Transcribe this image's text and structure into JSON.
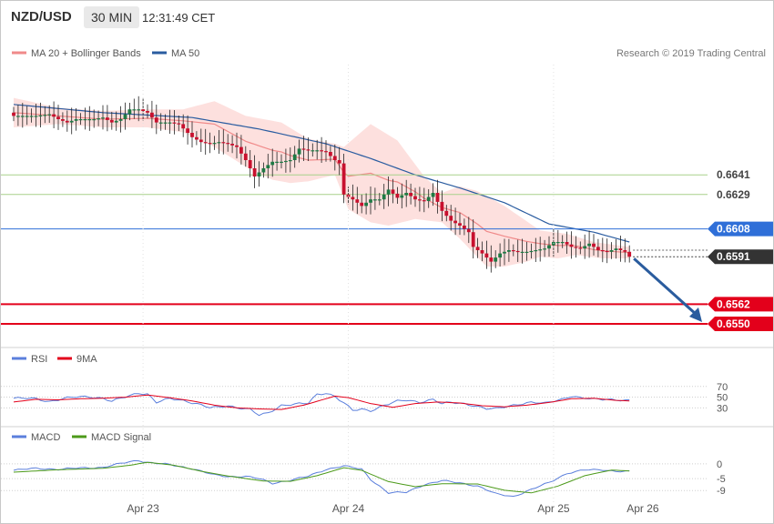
{
  "header": {
    "pair": "NZD/USD",
    "timeframe": "30 MIN",
    "clock": "12:31:49 CET"
  },
  "legend": {
    "bollinger": "MA 20 + Bollinger Bands",
    "ma50": "MA 50",
    "credit": "Research © 2019 Trading Central",
    "rsi": "RSI",
    "rsi_ma": "9MA",
    "macd": "MACD",
    "macd_signal": "MACD Signal"
  },
  "colors": {
    "bollinger": "#f08a8a",
    "bollinger_band": "#fde0de",
    "ma50": "#2a5ca0",
    "candle_up": "#1f7a45",
    "candle_down": "#c8102e",
    "resistance": "#a8d18a",
    "pivot": "#2f6fd8",
    "support": "#e3001b",
    "last_price": "#333333",
    "arrow": "#2a5c9e",
    "rsi": "#5b7fdc",
    "rsi_ma": "#e3001b",
    "macd": "#5b7fdc",
    "macd_signal": "#4c9a1a"
  },
  "chart_data": {
    "type": "candlestick",
    "x_ticks": [
      "Apr 23",
      "Apr 24",
      "Apr 25",
      "Apr 26"
    ],
    "price_axis_range": [
      0.654,
      0.6705
    ],
    "levels": [
      {
        "value": 0.6641,
        "label": "0.6641",
        "kind": "resistance"
      },
      {
        "value": 0.6629,
        "label": "0.6629",
        "kind": "resistance"
      },
      {
        "value": 0.6608,
        "label": "0.6608",
        "kind": "pivot"
      },
      {
        "value": 0.6591,
        "label": "0.6591",
        "kind": "last"
      },
      {
        "value": 0.6562,
        "label": "0.6562",
        "kind": "support"
      },
      {
        "value": 0.655,
        "label": "0.6550",
        "kind": "support"
      }
    ],
    "arrow": {
      "from": 0.6591,
      "to": 0.655,
      "direction": "down"
    },
    "close_anchors": [
      [
        0,
        0.6677
      ],
      [
        5,
        0.6677
      ],
      [
        8,
        0.6678
      ],
      [
        10,
        0.6675
      ],
      [
        12,
        0.6673
      ],
      [
        14,
        0.6675
      ],
      [
        18,
        0.6675
      ],
      [
        20,
        0.6676
      ],
      [
        22,
        0.6673
      ],
      [
        24,
        0.6675
      ],
      [
        26,
        0.6681
      ],
      [
        28,
        0.6681
      ],
      [
        30,
        0.6679
      ],
      [
        32,
        0.6673
      ],
      [
        35,
        0.6673
      ],
      [
        37,
        0.6672
      ],
      [
        40,
        0.6664
      ],
      [
        42,
        0.6661
      ],
      [
        44,
        0.666
      ],
      [
        46,
        0.6661
      ],
      [
        48,
        0.666
      ],
      [
        50,
        0.6658
      ],
      [
        52,
        0.665
      ],
      [
        53,
        0.6645
      ],
      [
        54,
        0.664
      ],
      [
        56,
        0.6645
      ],
      [
        58,
        0.6649
      ],
      [
        60,
        0.6649
      ],
      [
        62,
        0.665
      ],
      [
        64,
        0.6657
      ],
      [
        66,
        0.6656
      ],
      [
        68,
        0.6656
      ],
      [
        70,
        0.6655
      ],
      [
        72,
        0.665
      ],
      [
        73,
        0.6648
      ],
      [
        74,
        0.6629
      ],
      [
        76,
        0.6626
      ],
      [
        78,
        0.6622
      ],
      [
        80,
        0.6626
      ],
      [
        82,
        0.6626
      ],
      [
        84,
        0.6632
      ],
      [
        86,
        0.6627
      ],
      [
        88,
        0.663
      ],
      [
        90,
        0.6626
      ],
      [
        92,
        0.6625
      ],
      [
        94,
        0.663
      ],
      [
        96,
        0.6619
      ],
      [
        98,
        0.6613
      ],
      [
        100,
        0.661
      ],
      [
        102,
        0.6606
      ],
      [
        103,
        0.6597
      ],
      [
        105,
        0.6593
      ],
      [
        107,
        0.6588
      ],
      [
        109,
        0.6593
      ],
      [
        111,
        0.6595
      ],
      [
        113,
        0.6594
      ],
      [
        115,
        0.6594
      ],
      [
        117,
        0.6595
      ],
      [
        119,
        0.6596
      ],
      [
        121,
        0.66
      ],
      [
        123,
        0.66
      ],
      [
        125,
        0.6597
      ],
      [
        127,
        0.6596
      ],
      [
        129,
        0.6599
      ],
      [
        131,
        0.6595
      ],
      [
        133,
        0.6594
      ],
      [
        135,
        0.6596
      ],
      [
        137,
        0.6594
      ],
      [
        138,
        0.6591
      ]
    ],
    "ma50_anchors": [
      [
        0,
        0.6684
      ],
      [
        20,
        0.6679
      ],
      [
        40,
        0.6676
      ],
      [
        55,
        0.6669
      ],
      [
        70,
        0.666
      ],
      [
        80,
        0.6651
      ],
      [
        90,
        0.6641
      ],
      [
        100,
        0.6633
      ],
      [
        110,
        0.6624
      ],
      [
        120,
        0.6611
      ],
      [
        130,
        0.6606
      ],
      [
        138,
        0.66
      ]
    ],
    "bb_upper_anchors": [
      [
        0,
        0.6688
      ],
      [
        10,
        0.6682
      ],
      [
        20,
        0.668
      ],
      [
        30,
        0.6681
      ],
      [
        38,
        0.6681
      ],
      [
        45,
        0.6686
      ],
      [
        52,
        0.6677
      ],
      [
        60,
        0.6673
      ],
      [
        66,
        0.6663
      ],
      [
        72,
        0.666
      ],
      [
        74,
        0.6658
      ],
      [
        80,
        0.6672
      ],
      [
        86,
        0.6662
      ],
      [
        92,
        0.664
      ],
      [
        96,
        0.663
      ],
      [
        100,
        0.6634
      ],
      [
        104,
        0.6631
      ],
      [
        110,
        0.6622
      ],
      [
        118,
        0.6607
      ],
      [
        124,
        0.6605
      ],
      [
        130,
        0.66
      ],
      [
        138,
        0.6597
      ]
    ],
    "bb_lower_anchors": [
      [
        0,
        0.667
      ],
      [
        10,
        0.6672
      ],
      [
        20,
        0.667
      ],
      [
        30,
        0.667
      ],
      [
        38,
        0.6667
      ],
      [
        45,
        0.6658
      ],
      [
        52,
        0.6646
      ],
      [
        58,
        0.6638
      ],
      [
        62,
        0.6636
      ],
      [
        66,
        0.6637
      ],
      [
        72,
        0.6641
      ],
      [
        75,
        0.662
      ],
      [
        80,
        0.6612
      ],
      [
        84,
        0.661
      ],
      [
        90,
        0.6614
      ],
      [
        96,
        0.6612
      ],
      [
        100,
        0.6602
      ],
      [
        106,
        0.6585
      ],
      [
        110,
        0.6585
      ],
      [
        115,
        0.6588
      ],
      [
        118,
        0.6591
      ],
      [
        122,
        0.659
      ],
      [
        126,
        0.6592
      ],
      [
        132,
        0.659
      ],
      [
        138,
        0.659
      ]
    ],
    "rsi_range": [
      0,
      90
    ],
    "rsi_ticks": [
      70,
      50,
      30
    ],
    "rsi_anchors": [
      [
        0,
        48
      ],
      [
        5,
        47
      ],
      [
        8,
        42
      ],
      [
        11,
        47
      ],
      [
        14,
        50
      ],
      [
        17,
        51
      ],
      [
        20,
        48
      ],
      [
        22,
        42
      ],
      [
        25,
        50
      ],
      [
        28,
        58
      ],
      [
        30,
        56
      ],
      [
        32,
        40
      ],
      [
        35,
        47
      ],
      [
        38,
        44
      ],
      [
        41,
        38
      ],
      [
        44,
        30
      ],
      [
        46,
        31
      ],
      [
        48,
        34
      ],
      [
        50,
        31
      ],
      [
        53,
        27
      ],
      [
        55,
        16
      ],
      [
        57,
        20
      ],
      [
        60,
        35
      ],
      [
        63,
        37
      ],
      [
        66,
        38
      ],
      [
        68,
        55
      ],
      [
        70,
        58
      ],
      [
        72,
        52
      ],
      [
        74,
        39
      ],
      [
        76,
        25
      ],
      [
        78,
        27
      ],
      [
        80,
        25
      ],
      [
        83,
        35
      ],
      [
        86,
        42
      ],
      [
        88,
        44
      ],
      [
        91,
        41
      ],
      [
        94,
        46
      ],
      [
        96,
        37
      ],
      [
        98,
        40
      ],
      [
        101,
        38
      ],
      [
        103,
        35
      ],
      [
        106,
        28
      ],
      [
        108,
        28
      ],
      [
        110,
        32
      ],
      [
        113,
        37
      ],
      [
        116,
        40
      ],
      [
        119,
        38
      ],
      [
        121,
        43
      ],
      [
        123,
        47
      ],
      [
        125,
        52
      ],
      [
        127,
        48
      ],
      [
        130,
        46
      ],
      [
        133,
        47
      ],
      [
        135,
        45
      ],
      [
        138,
        43
      ]
    ],
    "rsi_ma_anchors": [
      [
        0,
        41
      ],
      [
        5,
        46
      ],
      [
        10,
        45
      ],
      [
        15,
        47
      ],
      [
        20,
        48
      ],
      [
        25,
        50
      ],
      [
        30,
        54
      ],
      [
        35,
        49
      ],
      [
        40,
        43
      ],
      [
        45,
        35
      ],
      [
        50,
        30
      ],
      [
        55,
        28
      ],
      [
        60,
        27
      ],
      [
        65,
        35
      ],
      [
        70,
        47
      ],
      [
        72,
        52
      ],
      [
        75,
        49
      ],
      [
        80,
        38
      ],
      [
        85,
        31
      ],
      [
        90,
        38
      ],
      [
        95,
        41
      ],
      [
        100,
        39
      ],
      [
        105,
        34
      ],
      [
        110,
        32
      ],
      [
        115,
        35
      ],
      [
        120,
        40
      ],
      [
        125,
        47
      ],
      [
        130,
        48
      ],
      [
        135,
        44
      ],
      [
        138,
        43
      ]
    ],
    "macd_range": [
      -12,
      7
    ],
    "macd_ticks": [
      0,
      -5,
      -9
    ],
    "macd_anchors": [
      [
        0,
        -2.2
      ],
      [
        5,
        -1.5
      ],
      [
        10,
        -1.9
      ],
      [
        15,
        -1.4
      ],
      [
        20,
        -1.2
      ],
      [
        24,
        0.1
      ],
      [
        28,
        1.2
      ],
      [
        30,
        0.5
      ],
      [
        35,
        -0.3
      ],
      [
        40,
        -1.6
      ],
      [
        45,
        -3.8
      ],
      [
        48,
        -4.3
      ],
      [
        52,
        -4.2
      ],
      [
        55,
        -5.0
      ],
      [
        58,
        -6.6
      ],
      [
        62,
        -5.5
      ],
      [
        66,
        -4.2
      ],
      [
        70,
        -1.9
      ],
      [
        74,
        -0.7
      ],
      [
        78,
        -1.8
      ],
      [
        80,
        -5.2
      ],
      [
        84,
        -9.8
      ],
      [
        88,
        -9.6
      ],
      [
        92,
        -7.0
      ],
      [
        96,
        -5.7
      ],
      [
        100,
        -6.4
      ],
      [
        104,
        -7.5
      ],
      [
        108,
        -10.1
      ],
      [
        112,
        -11.0
      ],
      [
        116,
        -8.7
      ],
      [
        120,
        -6.3
      ],
      [
        124,
        -3.2
      ],
      [
        128,
        -2.1
      ],
      [
        132,
        -2.0
      ],
      [
        135,
        -2.5
      ],
      [
        138,
        -2.6
      ]
    ],
    "macd_signal_anchors": [
      [
        0,
        -2.8
      ],
      [
        10,
        -2.0
      ],
      [
        20,
        -1.5
      ],
      [
        26,
        -0.5
      ],
      [
        30,
        0.5
      ],
      [
        36,
        -0.5
      ],
      [
        42,
        -2.5
      ],
      [
        48,
        -4.1
      ],
      [
        56,
        -5.8
      ],
      [
        62,
        -5.9
      ],
      [
        68,
        -4.0
      ],
      [
        74,
        -1.3
      ],
      [
        78,
        -2.2
      ],
      [
        84,
        -6.0
      ],
      [
        90,
        -7.7
      ],
      [
        96,
        -6.7
      ],
      [
        104,
        -6.8
      ],
      [
        110,
        -8.9
      ],
      [
        116,
        -9.8
      ],
      [
        122,
        -7.5
      ],
      [
        128,
        -4.0
      ],
      [
        134,
        -2.1
      ],
      [
        138,
        -2.4
      ]
    ]
  }
}
